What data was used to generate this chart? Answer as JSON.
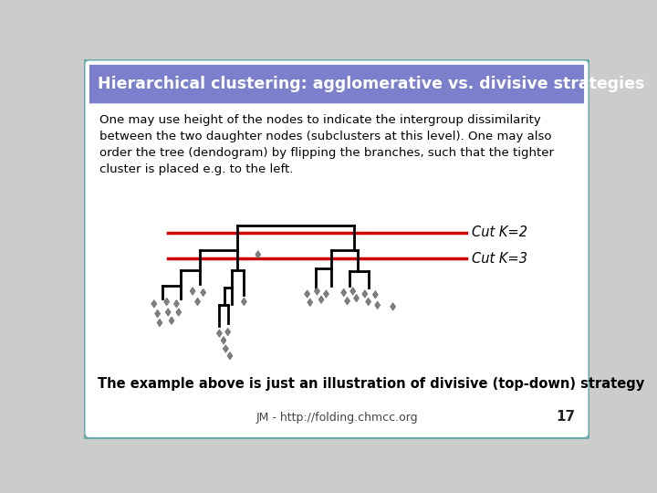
{
  "title": "Hierarchical clustering: agglomerative vs. divisive strategies",
  "header_bg": "#7B7FCC",
  "header_text_color": "#FFFFFF",
  "body_bg": "#FFFFFF",
  "slide_bg": "#CCCCCC",
  "border_color": "#6AABAA",
  "body_text": "One may use height of the nodes to indicate the intergroup dissimilarity\nbetween the two daughter nodes (subclusters at this level). One may also\norder the tree (dendogram) by flipping the branches, such that the tighter\ncluster is placed e.g. to the left.",
  "body_text_color": "#000000",
  "footer_text": "JM - http://folding.chmcc.org",
  "page_number": "17",
  "cut_k2_label": "Cut K=2",
  "cut_k3_label": "Cut K=3",
  "bottom_text": "The example above is just an illustration of divisive (top-down) strategy",
  "red_line_color": "#CC0000",
  "dendrogram_color": "#000000",
  "diamond_color": "#808080"
}
